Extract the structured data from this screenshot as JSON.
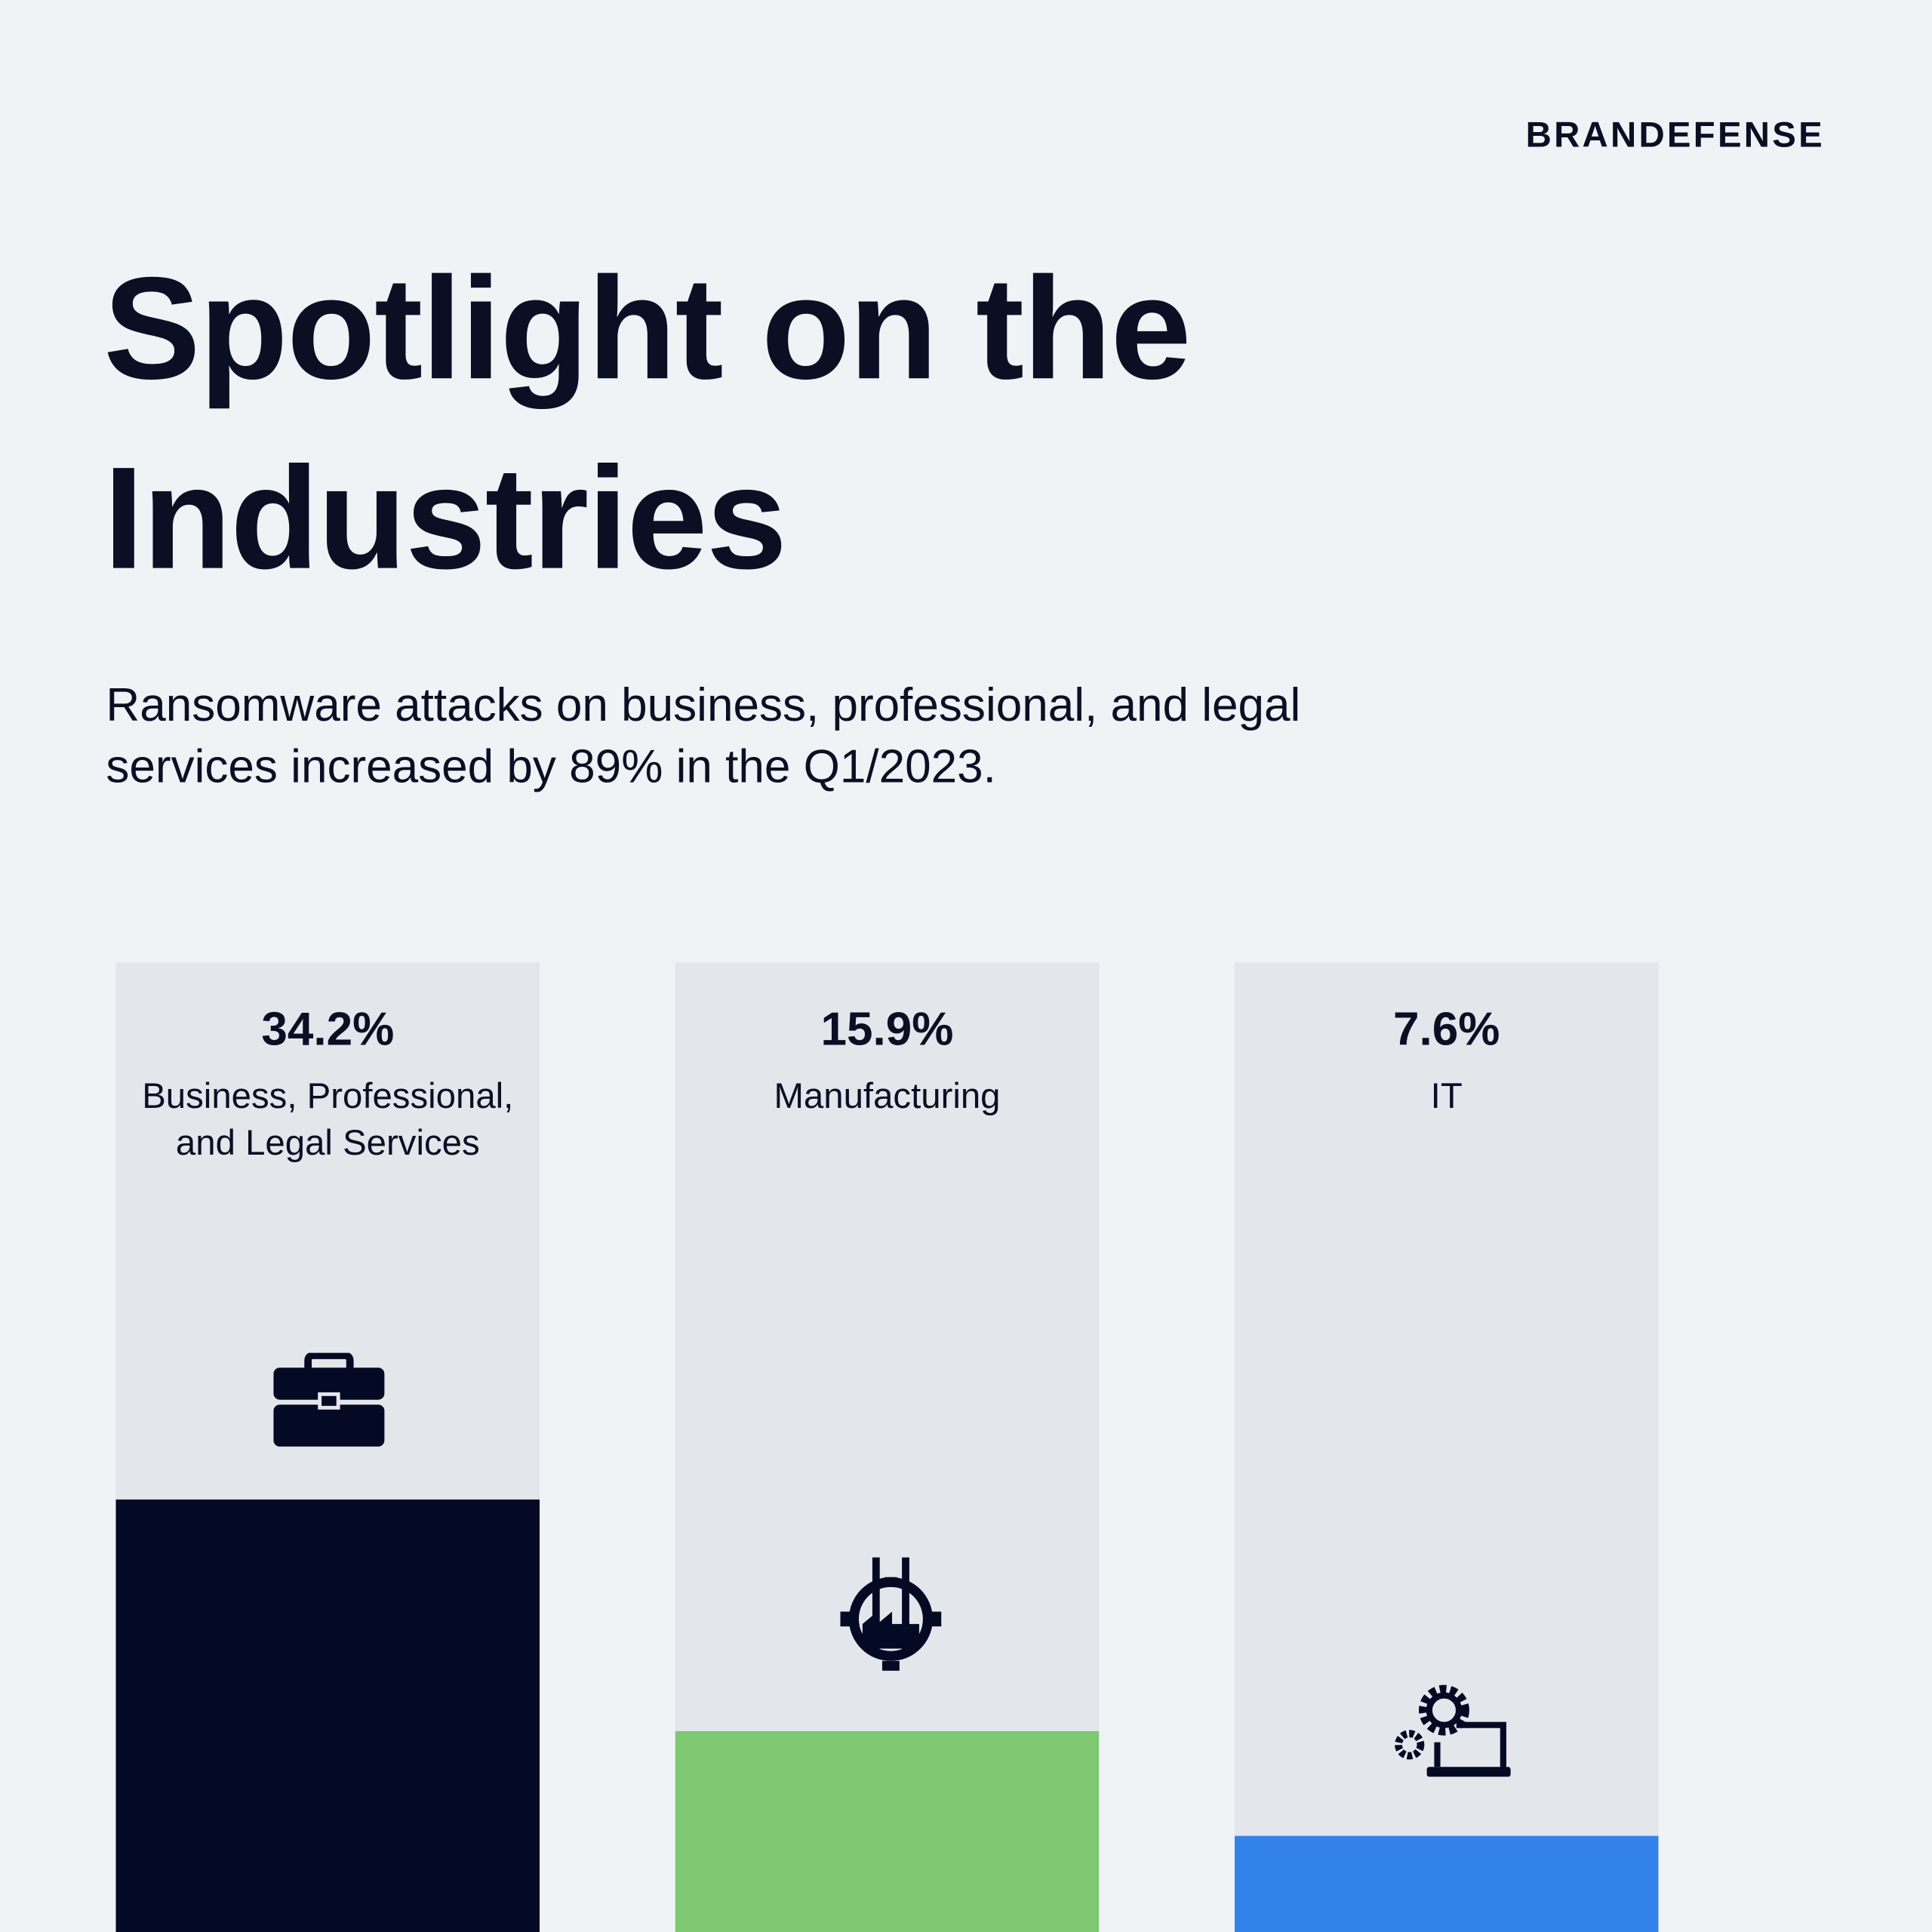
{
  "chart_data": {
    "type": "bar",
    "brand": "BRANDEFENSE",
    "title": "Spotlight on the Industries",
    "subtitle": "Ransomware attacks on business, professional, and legal services increased by 89% in the Q1/2023.",
    "categories": [
      "Business, Professional, and Legal Services",
      "Manufacturing",
      "IT"
    ],
    "values": [
      34.2,
      15.9,
      7.6
    ],
    "value_labels": [
      "34.2%",
      "15.9%",
      "7.6%"
    ],
    "colors": [
      "#050a24",
      "#7ec872",
      "#3282ea"
    ]
  }
}
